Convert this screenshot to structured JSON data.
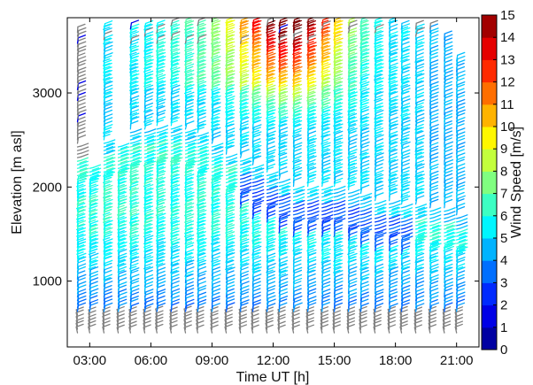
{
  "chart_data": {
    "type": "wind-barb profile time-height plot",
    "title": "",
    "xlabel": "Time UT [h]",
    "ylabel": "Elevation [m asl]",
    "x_ticks": [
      "03:00",
      "06:00",
      "09:00",
      "12:00",
      "15:00",
      "18:00",
      "21:00"
    ],
    "x_tick_values_h": [
      3,
      6,
      9,
      12,
      15,
      18,
      21
    ],
    "xlim_h": [
      1.9,
      22.1
    ],
    "y_ticks": [
      1000,
      2000,
      3000
    ],
    "ylim": [
      300,
      3800
    ],
    "colorbar": {
      "label": "Wind Speed [m/s]",
      "range": [
        0,
        15
      ],
      "ticks": [
        "0",
        "1",
        "2",
        "3",
        "4",
        "5",
        "6",
        "7",
        "8",
        "9",
        "10",
        "11",
        "12",
        "13",
        "14",
        "15"
      ],
      "colormap": "jet",
      "colors": [
        "#00008f",
        "#0000ff",
        "#00ffff",
        "#ffff00",
        "#ff0000",
        "#800000"
      ]
    },
    "profile_times_h": [
      2.4,
      3.0,
      3.7,
      4.4,
      5.0,
      5.7,
      6.3,
      7.0,
      7.7,
      8.3,
      9.0,
      9.7,
      10.4,
      11.0,
      11.7,
      12.3,
      13.0,
      13.7,
      14.4,
      15.0,
      15.7,
      16.3,
      17.0,
      17.7,
      18.3,
      19.0,
      19.7,
      20.4,
      21.0
    ],
    "profile_top_elevation_m": [
      3650,
      2200,
      3680,
      2450,
      3680,
      3700,
      3700,
      3720,
      3720,
      3730,
      3730,
      3730,
      3740,
      3740,
      3740,
      3750,
      3740,
      3740,
      3740,
      3740,
      3730,
      3730,
      3720,
      3720,
      3700,
      3700,
      3680,
      3600,
      3350
    ],
    "boundary_layer_top_m": [
      2300,
      2300,
      2350,
      2400,
      2450,
      2450,
      2500,
      2500,
      2450,
      2400,
      2300,
      2200,
      2150,
      2050,
      2000,
      1900,
      1850,
      1850,
      1850,
      1850,
      1800,
      1750,
      1700,
      1700,
      1650,
      1650,
      1600,
      1600,
      1550
    ],
    "max_speed_region": {
      "time_h": [
        12.5,
        13.5
      ],
      "elevation_m": [
        2900,
        3600
      ],
      "speed_ms": [
        13,
        15
      ]
    }
  }
}
